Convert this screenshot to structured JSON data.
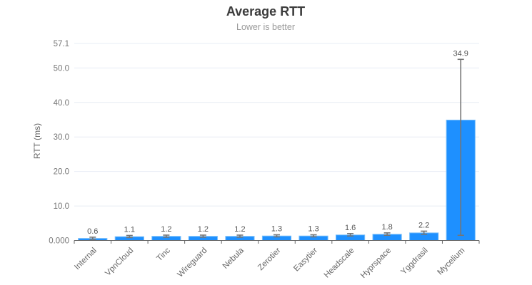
{
  "chart_data": {
    "type": "bar",
    "title": "Average RTT",
    "subtitle": "Lower is better",
    "ylabel": "RTT (ms)",
    "xlabel": "",
    "legend": "none",
    "grid": true,
    "categories": [
      "Internal",
      "VpnCloud",
      "Tinc",
      "Wireguard",
      "Nebula",
      "Zerotier",
      "Easytier",
      "Headscale",
      "Hyprspace",
      "Yggdrasil",
      "Mycelium"
    ],
    "values": [
      0.6,
      1.1,
      1.2,
      1.2,
      1.2,
      1.3,
      1.3,
      1.6,
      1.8,
      2.2,
      34.9
    ],
    "value_labels": [
      "0.6",
      "1.1",
      "1.2",
      "1.2",
      "1.2",
      "1.3",
      "1.3",
      "1.6",
      "1.8",
      "2.2",
      "34.9"
    ],
    "error_bars": {
      "low": [
        0.35,
        0.85,
        0.95,
        0.95,
        0.95,
        1.05,
        1.05,
        1.3,
        1.5,
        1.8,
        1.5
      ],
      "high": [
        0.95,
        1.45,
        1.55,
        1.55,
        1.55,
        1.65,
        1.65,
        2.0,
        2.2,
        2.7,
        52.5
      ]
    },
    "ylim": [
      0,
      57.1
    ],
    "yticks": {
      "values": [
        0,
        10,
        20,
        30,
        40,
        50,
        57.1
      ],
      "labels": [
        "0.000",
        "10.0",
        "20.0",
        "30.0",
        "40.0",
        "50.0",
        "57.1"
      ]
    },
    "colors": {
      "bar_fill": "#1E90FF",
      "bar_border": "#7ABFF9",
      "error_bar": "#757575",
      "grid_line": "#E7ECF4",
      "axis_line": "#666666",
      "ytick_text": "#777777",
      "xtick_text": "#666666",
      "value_label_text": "#555555",
      "title_text": "#3C3C3C",
      "subtitle_text": "#999999",
      "axis_title_text": "#666666"
    }
  }
}
